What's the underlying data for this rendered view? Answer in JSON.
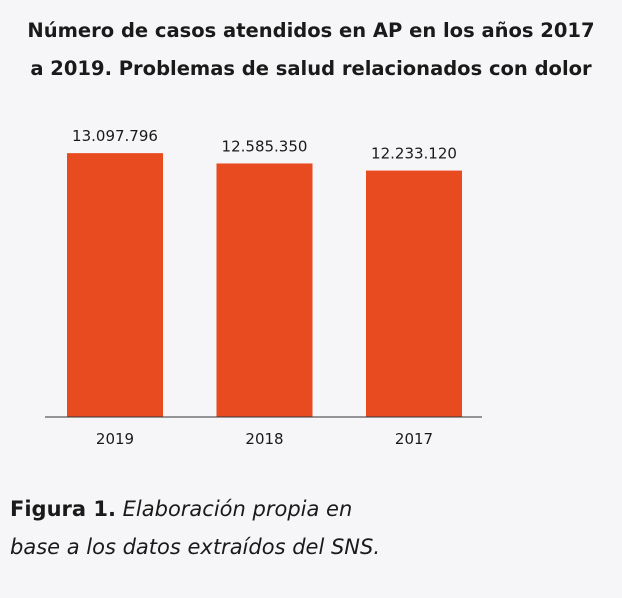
{
  "chart_data": {
    "type": "bar",
    "title_lines": [
      "Número de casos atendidos en AP en los años 2017",
      "a 2019. Problemas de salud relacionados con dolor"
    ],
    "categories": [
      "2019",
      "2018",
      "2017"
    ],
    "values": [
      13097796,
      12585350,
      12233120
    ],
    "value_labels": [
      "13.097.796",
      "12.585.350",
      "12.233.120"
    ],
    "ylim": [
      0,
      13800000
    ],
    "xlabel": "",
    "ylabel": "",
    "grid": false,
    "legend": "none",
    "bar_color": "#e84b1f"
  },
  "caption": {
    "label": "Figura 1.",
    "line1": " Elaboración propia en",
    "line2": "base a los datos extraídos del SNS."
  }
}
